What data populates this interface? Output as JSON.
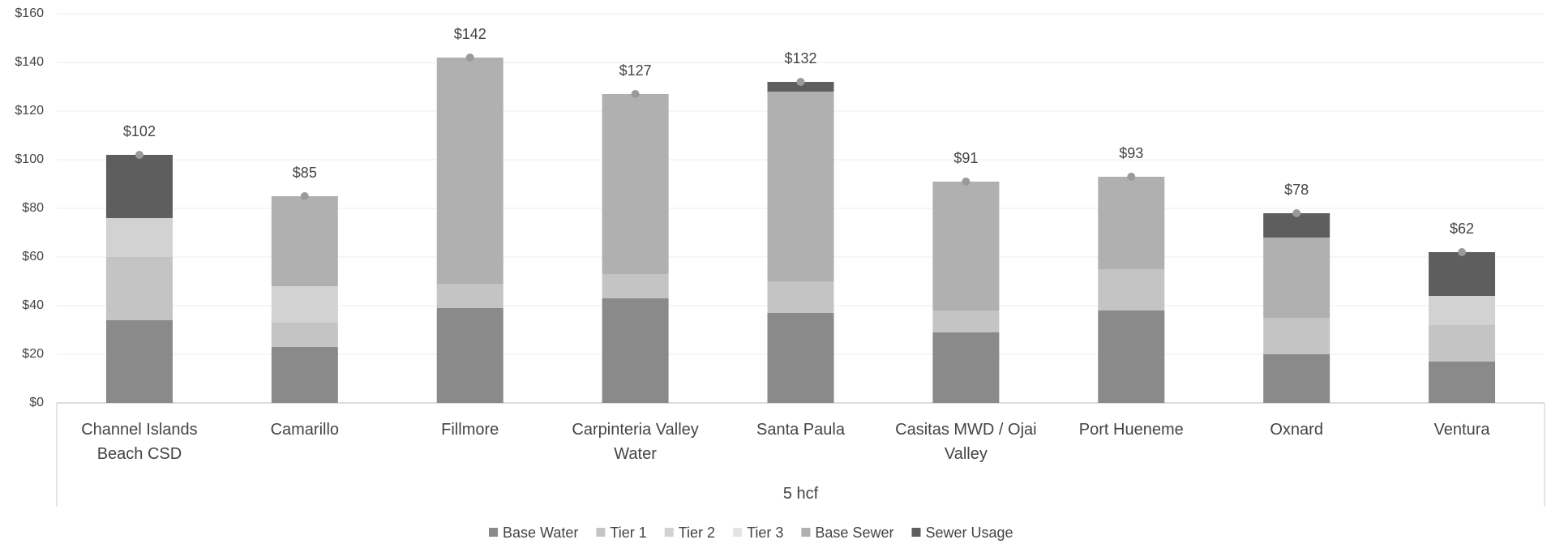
{
  "chart_data": {
    "type": "stacked_bar",
    "categories": [
      "Channel Islands Beach CSD",
      "Camarillo",
      "Fillmore",
      "Carpinteria Valley Water",
      "Santa Paula",
      "Casitas MWD / Ojai Valley",
      "Port Hueneme",
      "Oxnard",
      "Ventura"
    ],
    "group_label": "5 hcf",
    "series": [
      {
        "name": "Base Water",
        "color": "#8a8a8a",
        "values": [
          34,
          23,
          39,
          43,
          37,
          29,
          38,
          20,
          17
        ]
      },
      {
        "name": "Tier 1",
        "color": "#c4c4c4",
        "values": [
          26,
          10,
          10,
          10,
          13,
          9,
          17,
          15,
          15
        ]
      },
      {
        "name": "Tier 2",
        "color": "#d2d2d2",
        "values": [
          16,
          15,
          0,
          0,
          0,
          0,
          0,
          0,
          12
        ]
      },
      {
        "name": "Tier 3",
        "color": "#e4e4e4",
        "values": [
          0,
          0,
          0,
          0,
          0,
          0,
          0,
          0,
          0
        ]
      },
      {
        "name": "Base Sewer",
        "color": "#b0b0b0",
        "values": [
          0,
          37,
          93,
          74,
          78,
          53,
          38,
          33,
          0
        ]
      },
      {
        "name": "Sewer Usage",
        "color": "#5e5e5e",
        "values": [
          26,
          0,
          0,
          0,
          4,
          0,
          0,
          10,
          18
        ]
      }
    ],
    "totals": [
      102,
      85,
      142,
      127,
      132,
      91,
      93,
      78,
      62
    ],
    "total_labels": [
      "$102",
      "$85",
      "$142",
      "$127",
      "$132",
      "$91",
      "$93",
      "$78",
      "$62"
    ],
    "total_color": "#9a9a9a",
    "ylim": [
      0,
      160
    ],
    "yticks": [
      {
        "value": 0,
        "label": "$0"
      },
      {
        "value": 20,
        "label": "$20"
      },
      {
        "value": 40,
        "label": "$40"
      },
      {
        "value": 60,
        "label": "$60"
      },
      {
        "value": 80,
        "label": "$80"
      },
      {
        "value": 100,
        "label": "$100"
      },
      {
        "value": 120,
        "label": "$120"
      },
      {
        "value": 140,
        "label": "$140"
      },
      {
        "value": 160,
        "label": "$160"
      }
    ],
    "grid": true,
    "legend": "bottom"
  }
}
